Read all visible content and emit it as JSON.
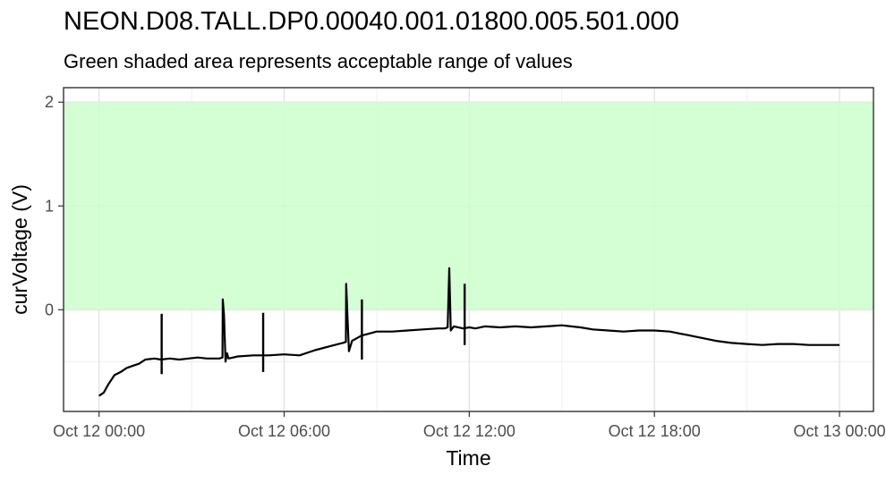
{
  "chart_data": {
    "type": "line",
    "title": "NEON.D08.TALL.DP0.00040.001.01800.005.501.000",
    "subtitle": "Green shaded area represents acceptable range of values",
    "xlabel": "Time",
    "ylabel": "curVoltage (V)",
    "xlim": [
      -1.15,
      25.1
    ],
    "ylim": [
      -0.98,
      2.14
    ],
    "x_unit": "hours since Oct 12 00:00",
    "acceptable_range": [
      0,
      2
    ],
    "acceptable_color": "#ccffcc",
    "line_color": "#000000",
    "grid": true,
    "x_ticks": [
      {
        "value": 0,
        "label": "Oct 12 00:00"
      },
      {
        "value": 6,
        "label": "Oct 12 06:00"
      },
      {
        "value": 12,
        "label": "Oct 12 12:00"
      },
      {
        "value": 18,
        "label": "Oct 12 18:00"
      },
      {
        "value": 24,
        "label": "Oct 13 00:00"
      }
    ],
    "y_ticks": [
      {
        "value": 0,
        "label": "0"
      },
      {
        "value": 1,
        "label": "1"
      },
      {
        "value": 2,
        "label": "2"
      }
    ],
    "series": [
      {
        "x": [
          0,
          0.15,
          0.3,
          0.5,
          0.7,
          0.9,
          1.1,
          1.3,
          1.5,
          1.8,
          2.0,
          2.3,
          2.6,
          2.9,
          3.2,
          3.5,
          3.9,
          4.0,
          4.01,
          4.05,
          4.1,
          4.15,
          4.2,
          4.5,
          5.0,
          5.5,
          6.0,
          6.5,
          7.0,
          7.5,
          7.9,
          8.0,
          8.01,
          8.05,
          8.1,
          8.2,
          8.5,
          9.0,
          9.5,
          10.0,
          10.5,
          11.0,
          11.2,
          11.3,
          11.35,
          11.4,
          11.5,
          11.8,
          12.0,
          12.2,
          12.5,
          13.0,
          13.5,
          14.0,
          14.5,
          15.0,
          15.3,
          15.6,
          16.0,
          16.5,
          17.0,
          17.5,
          18.0,
          18.5,
          19.0,
          19.5,
          20.0,
          20.5,
          21.0,
          21.5,
          22.0,
          22.5,
          23.0,
          23.5,
          24.0
        ],
        "y": [
          -0.83,
          -0.8,
          -0.72,
          -0.63,
          -0.6,
          -0.56,
          -0.54,
          -0.52,
          -0.48,
          -0.47,
          -0.48,
          -0.47,
          -0.48,
          -0.47,
          -0.46,
          -0.47,
          -0.47,
          -0.46,
          0.1,
          -0.05,
          -0.5,
          -0.42,
          -0.47,
          -0.45,
          -0.44,
          -0.44,
          -0.43,
          -0.44,
          -0.39,
          -0.35,
          -0.32,
          -0.31,
          0.25,
          -0.05,
          -0.4,
          -0.3,
          -0.25,
          -0.21,
          -0.21,
          -0.2,
          -0.19,
          -0.18,
          -0.18,
          -0.17,
          0.4,
          -0.2,
          -0.16,
          -0.18,
          -0.17,
          -0.18,
          -0.16,
          -0.17,
          -0.16,
          -0.17,
          -0.16,
          -0.15,
          -0.16,
          -0.17,
          -0.19,
          -0.2,
          -0.21,
          -0.2,
          -0.2,
          -0.21,
          -0.24,
          -0.27,
          -0.3,
          -0.32,
          -0.33,
          -0.34,
          -0.33,
          -0.33,
          -0.34,
          -0.34,
          -0.34
        ]
      }
    ],
    "spikes": [
      {
        "x": 2.03,
        "top": -0.04,
        "bottom": -0.62
      },
      {
        "x": 5.32,
        "top": -0.03,
        "bottom": -0.6
      },
      {
        "x": 8.52,
        "top": 0.1,
        "bottom": -0.48
      },
      {
        "x": 11.85,
        "top": 0.25,
        "bottom": -0.34
      }
    ]
  }
}
